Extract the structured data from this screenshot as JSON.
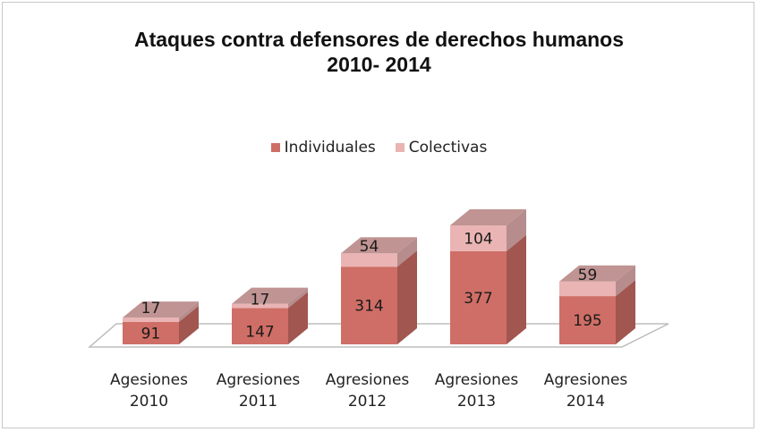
{
  "chart_data": {
    "type": "bar",
    "stacked": true,
    "style": "3d",
    "title": "Ataques contra defensores de derechos humanos",
    "subtitle": "2010- 2014",
    "categories": [
      [
        "Agesiones",
        "2010"
      ],
      [
        "Agresiones",
        "2011"
      ],
      [
        "Agresiones",
        "2012"
      ],
      [
        "Agresiones",
        "2013"
      ],
      [
        "Agresiones",
        "2014"
      ]
    ],
    "series": [
      {
        "name": "Individuales",
        "values": [
          91,
          147,
          314,
          377,
          195
        ],
        "color": "#cf6e66"
      },
      {
        "name": "Colectivas",
        "values": [
          17,
          17,
          54,
          104,
          59
        ],
        "color": "#e9b4b3"
      }
    ],
    "xlabel": "",
    "ylabel": "",
    "ylim": [
      0,
      481
    ],
    "grid": false,
    "legend_position": "top",
    "data_labels": true
  }
}
